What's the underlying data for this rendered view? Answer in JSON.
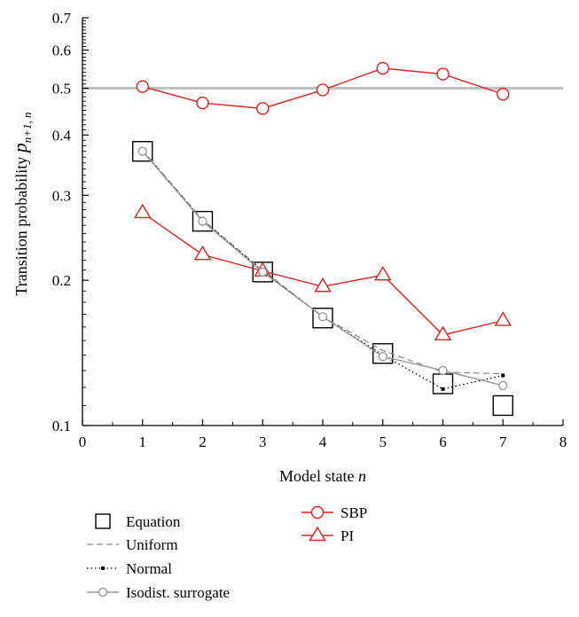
{
  "chart_data": {
    "type": "line",
    "title": "",
    "xlabel": "Model state",
    "xlabel_var": "n",
    "ylabel": "Transition probability",
    "ylabel_var": "p",
    "ylabel_sub": "n+1, n",
    "xlim": [
      0,
      8
    ],
    "ylim": [
      0.1,
      0.7
    ],
    "yscale": "log",
    "xticks": [
      "0",
      "1",
      "2",
      "3",
      "4",
      "5",
      "6",
      "7",
      "8"
    ],
    "yticks": [
      {
        "value": 0.1,
        "label": "0.1"
      },
      {
        "value": 0.2,
        "label": "0.2"
      },
      {
        "value": 0.3,
        "label": "0.3"
      },
      {
        "value": 0.4,
        "label": "0.4"
      },
      {
        "value": 0.5,
        "label": "0.5"
      },
      {
        "value": 0.6,
        "label": "0.6"
      },
      {
        "value": 0.7,
        "label": "0.7"
      }
    ],
    "reference_line": {
      "y": 0.5,
      "color": "#c0c0c0"
    },
    "grid": false,
    "legend_position": "below",
    "series": [
      {
        "name": "Equation",
        "style": "square-marker",
        "color": "#000000",
        "x": [
          1,
          2,
          3,
          4,
          5,
          6,
          7
        ],
        "y": [
          0.37,
          0.265,
          0.208,
          0.167,
          0.141,
          0.122,
          0.11
        ]
      },
      {
        "name": "Uniform",
        "style": "dashed",
        "color": "#888888",
        "x": [
          1,
          2,
          3,
          4,
          5,
          6,
          7
        ],
        "y": [
          0.372,
          0.267,
          0.21,
          0.168,
          0.143,
          0.129,
          0.128
        ]
      },
      {
        "name": "Normal",
        "style": "dotted-dot",
        "color": "#000000",
        "x": [
          1,
          2,
          3,
          4,
          5,
          6,
          7
        ],
        "y": [
          0.371,
          0.266,
          0.209,
          0.168,
          0.14,
          0.119,
          0.127
        ]
      },
      {
        "name": "Isodist. surrogate",
        "style": "line-circle",
        "color": "#999999",
        "x": [
          1,
          2,
          3,
          4,
          5,
          6,
          7
        ],
        "y": [
          0.37,
          0.265,
          0.208,
          0.168,
          0.139,
          0.13,
          0.121
        ]
      },
      {
        "name": "SBP",
        "style": "line-circle",
        "color": "#e02020",
        "x": [
          1,
          2,
          3,
          4,
          5,
          6,
          7
        ],
        "y": [
          0.504,
          0.466,
          0.454,
          0.496,
          0.55,
          0.535,
          0.486
        ]
      },
      {
        "name": "PI",
        "style": "line-triangle",
        "color": "#e02020",
        "x": [
          1,
          2,
          3,
          4,
          5,
          6,
          7
        ],
        "y": [
          0.276,
          0.226,
          0.209,
          0.194,
          0.205,
          0.154,
          0.165
        ]
      }
    ]
  }
}
